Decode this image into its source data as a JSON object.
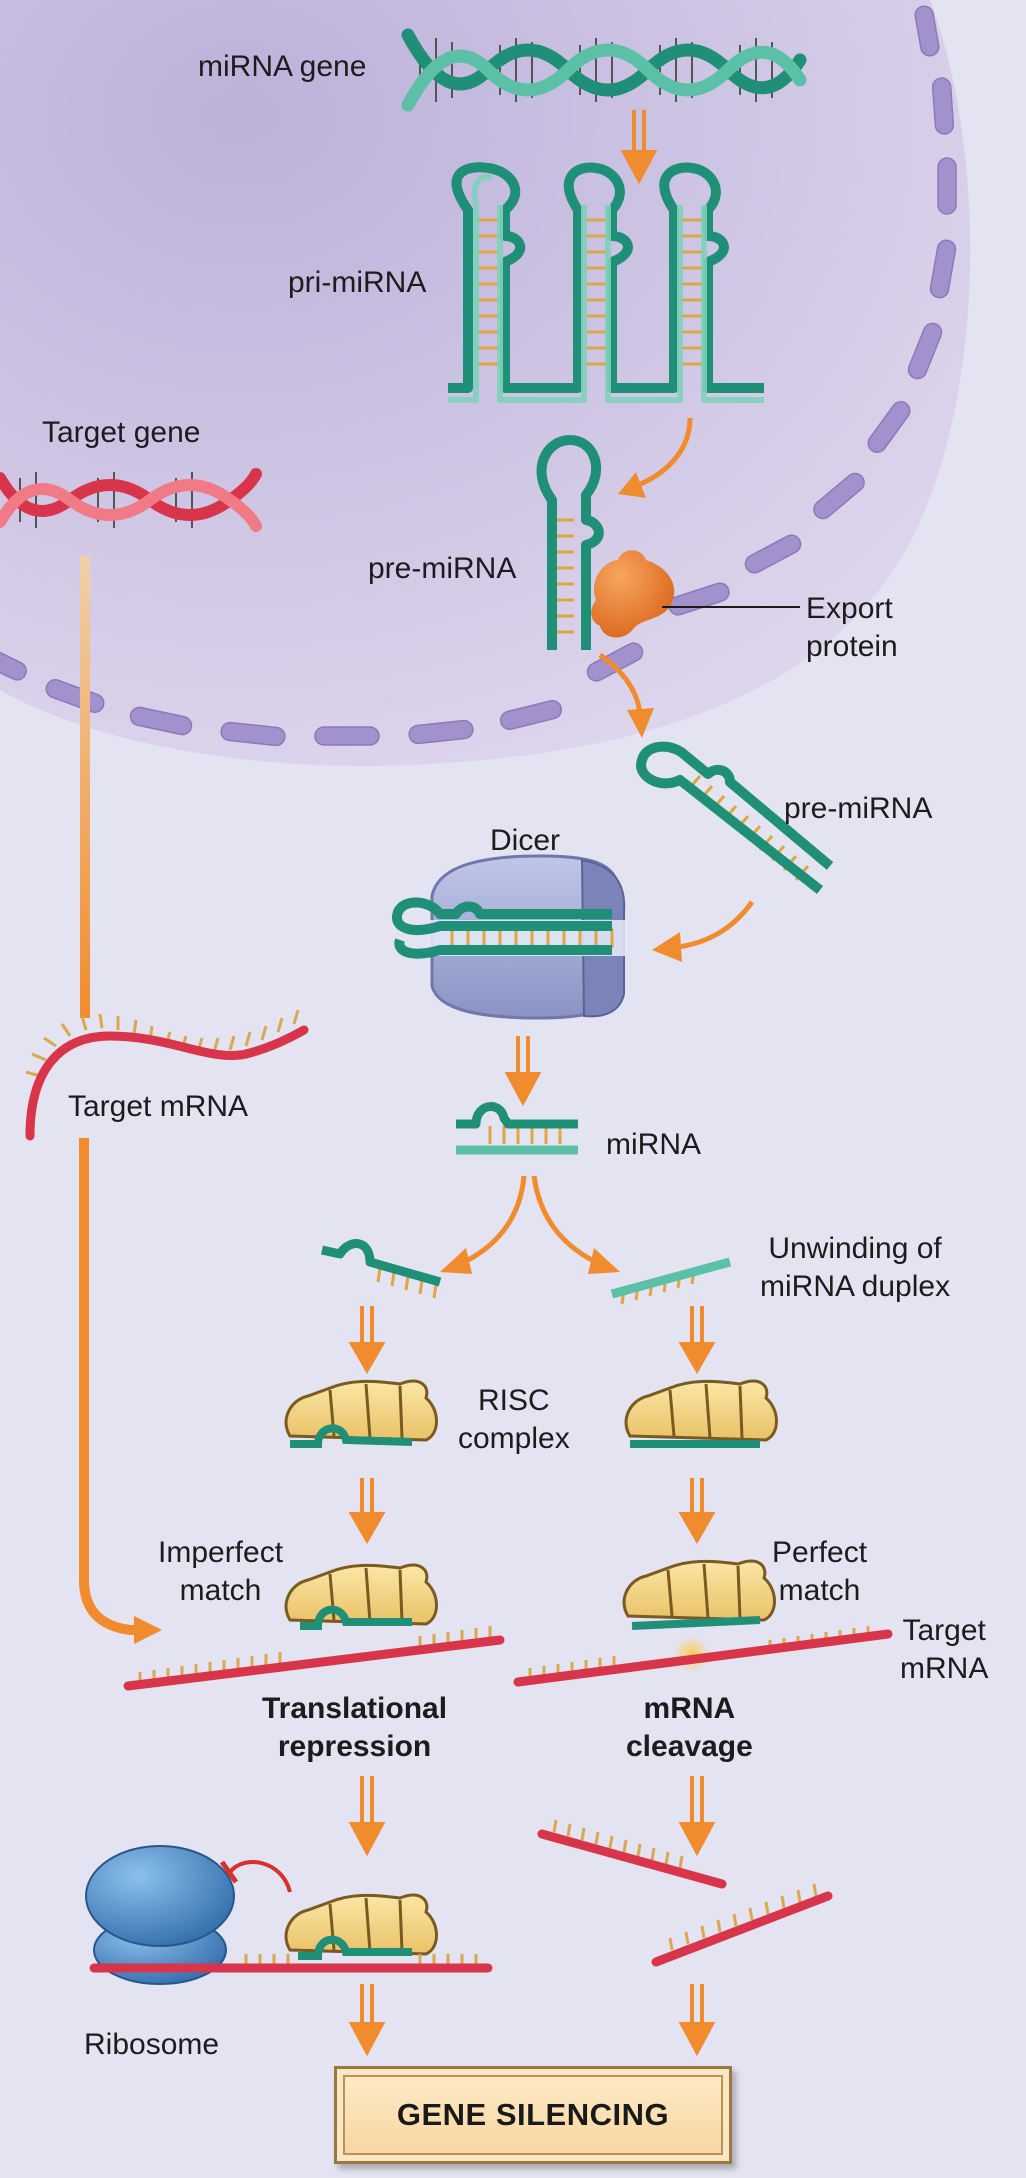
{
  "labels": {
    "mirna_gene": "miRNA gene",
    "pri_mirna": "pri-miRNA",
    "target_gene": "Target gene",
    "pre_mirna_nucleus": "pre-miRNA",
    "export_protein": "Export\nprotein",
    "pre_mirna_cytoplasm": "pre-miRNA",
    "dicer": "Dicer",
    "target_mrna_left": "Target mRNA",
    "mirna": "miRNA",
    "unwinding": "Unwinding of\nmiRNA duplex",
    "risc_complex": "RISC\ncomplex",
    "imperfect_match": "Imperfect\nmatch",
    "perfect_match": "Perfect\nmatch",
    "target_mrna_right": "Target\nmRNA",
    "translational_repression": "Translational\nrepression",
    "mrna_cleavage": "mRNA\ncleavage",
    "ribosome": "Ribosome",
    "gene_silencing": "GENE SILENCING"
  },
  "colors": {
    "nucleus": "#cfc3e3",
    "nuclear_pore": "#a08fca",
    "mirna_strand": "#1f8f78",
    "target_strand": "#d9354a",
    "arrow": "#f08c2e",
    "dicer": "#9ea6d2",
    "risc": "#f3d27a",
    "ribosome": "#3f84c3",
    "export_protein": "#e8782a",
    "block": "#d8302c"
  }
}
